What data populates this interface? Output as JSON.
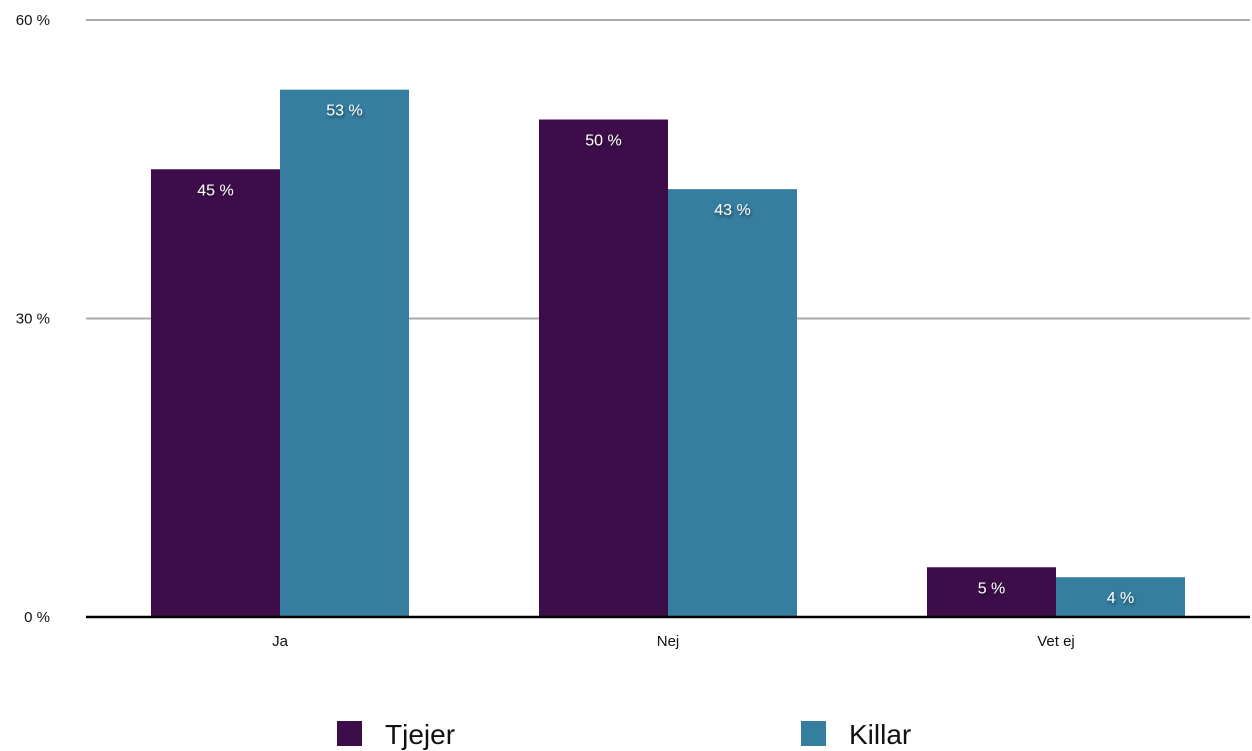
{
  "chart_data": {
    "type": "bar",
    "categories": [
      "Ja",
      "Nej",
      "Vet ej"
    ],
    "series": [
      {
        "name": "Tjejer",
        "values": [
          45,
          50,
          5
        ],
        "labels": [
          "45 %",
          "50 %",
          "5 %"
        ],
        "color": "#3d0d4a"
      },
      {
        "name": "Killar",
        "values": [
          53,
          43,
          4
        ],
        "labels": [
          "53 %",
          "43 %",
          "4 %"
        ],
        "color": "#357ea0"
      }
    ],
    "ylim": [
      0,
      60
    ],
    "yticks": [
      0,
      30,
      60
    ],
    "ytick_labels": [
      "0 %",
      "30 %",
      "60 %"
    ],
    "grid": true,
    "legend_position": "bottom",
    "colors": {
      "grid": "#aaaaaa",
      "axis": "#000000"
    }
  }
}
